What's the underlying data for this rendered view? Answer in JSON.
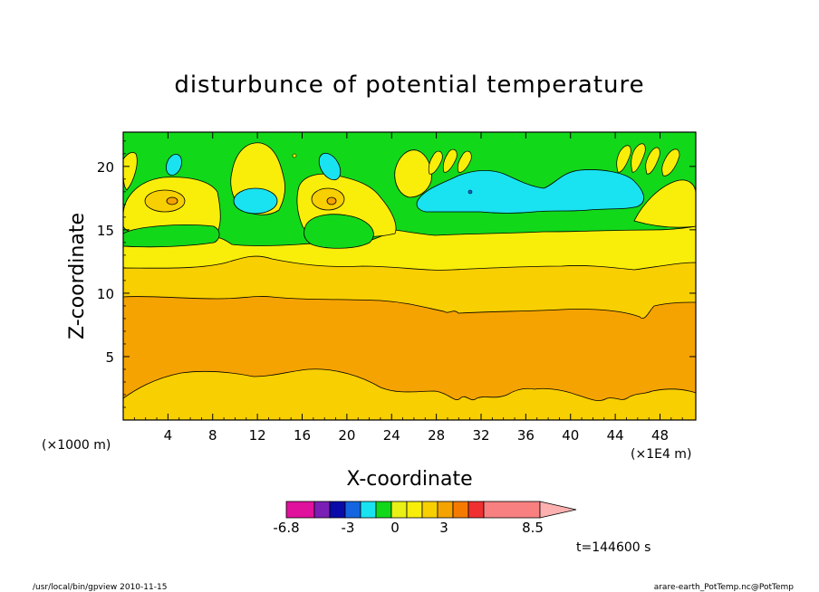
{
  "chart_data": {
    "type": "heatmap",
    "title": "disturbunce of potential temperature",
    "xlabel": "X-coordinate",
    "ylabel": "Z-coordinate",
    "x_unit": "(×1E4 m)",
    "y_unit": "(×1000 m)",
    "xlim": [
      0,
      51.2
    ],
    "ylim": [
      0,
      22.7
    ],
    "x_ticks": [
      4,
      8,
      12,
      16,
      20,
      24,
      28,
      32,
      36,
      40,
      44,
      48
    ],
    "y_ticks": [
      5,
      10,
      15,
      20
    ],
    "time_label": "t=144600 s",
    "colorbar": {
      "colors": [
        "#e0119c",
        "#7a1fb5",
        "#0a0aa8",
        "#1565e0",
        "#19e3f0",
        "#12d81a",
        "#e8f015",
        "#f8ee0a",
        "#f8cf00",
        "#f5a300",
        "#f57b00",
        "#f03030",
        "#f98080",
        "#fcb0b0"
      ],
      "tick_labels": [
        "-6.8",
        "-3",
        "0",
        "3",
        "8.5"
      ],
      "tick_values": [
        -6.8,
        -3,
        0,
        3,
        8.5
      ]
    },
    "layers": [
      {
        "name": "green",
        "color": "#12d81a",
        "z_from": 13.5,
        "z_to": 22.7
      },
      {
        "name": "yellow",
        "color": "#f8ee0a",
        "z_from": 12.2,
        "z_to": 15.0
      },
      {
        "name": "gold",
        "color": "#f8cf00",
        "z_from": 9.5,
        "z_to": 12.5
      },
      {
        "name": "orange",
        "color": "#f5a300",
        "z_from": 3.2,
        "z_to": 9.8
      },
      {
        "name": "gold-bottom",
        "color": "#f8cf00",
        "z_from": 0,
        "z_to": 3.5
      }
    ],
    "footer": {
      "left": "/usr/local/bin/gpview  2010-11-15",
      "right": "arare-earth_PotTemp.nc@PotTemp"
    }
  }
}
